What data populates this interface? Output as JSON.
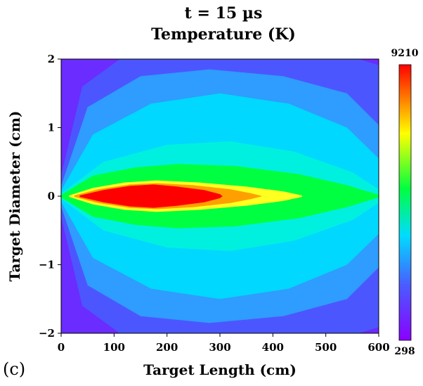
{
  "chart_data": {
    "type": "heatmap",
    "title": "t = 15 µs",
    "subtitle": "Temperature (K)",
    "xlabel": "Target Length (cm)",
    "ylabel": "Target Diameter (cm)",
    "xlim": [
      0,
      600
    ],
    "ylim": [
      -2,
      2
    ],
    "x_ticks": [
      "0",
      "100",
      "200",
      "300",
      "400",
      "500",
      "600"
    ],
    "y_ticks": [
      "−2",
      "−1",
      "0",
      "1",
      "2"
    ],
    "colorbar": {
      "min": 298,
      "max": 9210,
      "min_label": "298",
      "max_label": "9210"
    },
    "panel_label": "(c)",
    "colormap": [
      "#8a00ff",
      "#5060ff",
      "#00e0ff",
      "#00ff40",
      "#ffff00",
      "#ff0000"
    ],
    "field": {
      "description_free": true,
      "hot_core": {
        "x_start": 20,
        "x_peak": 160,
        "x_end": 450,
        "half_width_max": 0.2
      },
      "warm_region": {
        "x_end": 600,
        "half_width_max": 0.45,
        "x_of_max_width": 220
      },
      "cyan_envelope": {
        "half_width_max": 1.5,
        "x_of_max_width": 330
      }
    }
  }
}
